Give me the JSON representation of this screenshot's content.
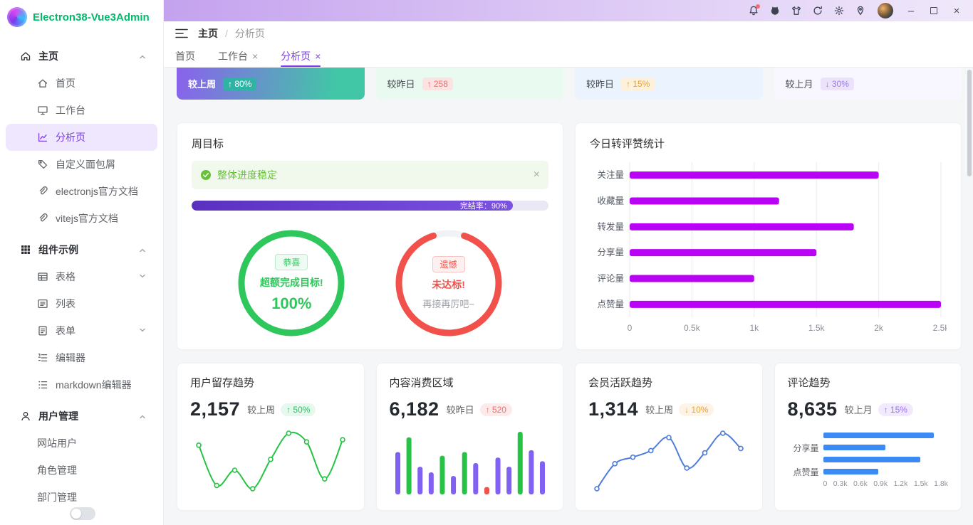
{
  "app": {
    "title": "Electron38-Vue3Admin"
  },
  "colors": {
    "brand_green": "#00b96b",
    "primary_purple": "#7c3aed",
    "bar_magenta": "#b903f5",
    "line_green": "#27c346",
    "line_blue": "#4f7cdb",
    "bar_blue": "#3d8af5",
    "bar_purple": "#8161f1",
    "danger_red": "#f56c6c",
    "warning_orange": "#e6a23c"
  },
  "titlebar": {
    "icons": [
      {
        "name": "bell",
        "has_dot": true
      },
      {
        "name": "github",
        "has_dot": false
      },
      {
        "name": "theme",
        "has_dot": false
      },
      {
        "name": "refresh",
        "has_dot": false
      },
      {
        "name": "settings",
        "has_dot": false
      },
      {
        "name": "pin",
        "has_dot": false
      }
    ],
    "window_controls": [
      "minimize",
      "maximize",
      "close"
    ]
  },
  "breadcrumb": {
    "root": "主页",
    "separator": "/",
    "current": "分析页"
  },
  "tabs": [
    {
      "label": "首页",
      "closable": false,
      "active": false
    },
    {
      "label": "工作台",
      "closable": true,
      "active": false
    },
    {
      "label": "分析页",
      "closable": true,
      "active": true
    }
  ],
  "sidebar": {
    "items": [
      {
        "label": "主页",
        "icon": "home",
        "depth": 0,
        "group": true,
        "chevron": "up"
      },
      {
        "label": "首页",
        "icon": "house",
        "depth": 1
      },
      {
        "label": "工作台",
        "icon": "monitor",
        "depth": 1
      },
      {
        "label": "分析页",
        "icon": "chart",
        "depth": 1,
        "active": true
      },
      {
        "label": "自定义面包屑",
        "icon": "tag",
        "depth": 1
      },
      {
        "label": "electronjs官方文档",
        "icon": "link",
        "depth": 1
      },
      {
        "label": "vitejs官方文档",
        "icon": "link",
        "depth": 1
      },
      {
        "label": "组件示例",
        "icon": "grid",
        "depth": 0,
        "group": true,
        "chevron": "up"
      },
      {
        "label": "表格",
        "icon": "table",
        "depth": 1,
        "chevron": "down"
      },
      {
        "label": "列表",
        "icon": "list",
        "depth": 1
      },
      {
        "label": "表单",
        "icon": "form",
        "depth": 1,
        "chevron": "down"
      },
      {
        "label": "编辑器",
        "icon": "editor",
        "depth": 1
      },
      {
        "label": "markdown编辑器",
        "icon": "markdown",
        "depth": 1
      },
      {
        "label": "用户管理",
        "icon": "user",
        "depth": 0,
        "group": true,
        "chevron": "up"
      },
      {
        "label": "网站用户",
        "icon": "",
        "depth": 1
      },
      {
        "label": "角色管理",
        "icon": "",
        "depth": 1
      },
      {
        "label": "部门管理",
        "icon": "",
        "depth": 1
      }
    ]
  },
  "stat_cards": [
    {
      "label": "较上周",
      "badge": "↑ 80%",
      "style": "gradient"
    },
    {
      "label": "较昨日",
      "badge": "↑ 258",
      "style": "green"
    },
    {
      "label": "较昨日",
      "badge": "↑ 15%",
      "style": "blue"
    },
    {
      "label": "较上月",
      "badge": "↓ 30%",
      "style": "purple"
    }
  ],
  "week_goal": {
    "title": "周目标",
    "alert_text": "整体进度稳定",
    "progress_label": "完结率：90%",
    "progress_percent": 90
  },
  "trend_cards": [
    {
      "title": "用户留存趋势",
      "value": "2,157",
      "compare": "较上周",
      "badge": "↑ 50%",
      "badge_style": "green",
      "chart": "retention"
    },
    {
      "title": "内容消费区域",
      "value": "6,182",
      "compare": "较昨日",
      "badge": "↑ 520",
      "badge_style": "red",
      "chart": "consumption"
    },
    {
      "title": "会员活跃趋势",
      "value": "1,314",
      "compare": "较上周",
      "badge": "↓ 10%",
      "badge_style": "orange",
      "chart": "member"
    },
    {
      "title": "评论趋势",
      "value": "8,635",
      "compare": "较上月",
      "badge": "↑ 15%",
      "badge_style": "purple",
      "chart": "comment"
    }
  ],
  "chart_data": [
    {
      "id": "goal_success",
      "type": "gauge",
      "percent": 100,
      "color": "#2ec75b",
      "badge": "恭喜",
      "line1": "超额完成目标!",
      "line2": "100%",
      "line2_style": "big"
    },
    {
      "id": "goal_fail",
      "type": "gauge",
      "percent": 90,
      "color": "#f2504b",
      "badge": "遗憾",
      "line1": "未达标!",
      "line2": "再接再厉吧~",
      "line2_style": "muted"
    },
    {
      "id": "interaction",
      "type": "bar",
      "orientation": "horizontal",
      "title": "今日转评赞统计",
      "categories": [
        "关注量",
        "收藏量",
        "转发量",
        "分享量",
        "评论量",
        "点赞量"
      ],
      "values": [
        2000,
        1200,
        1800,
        1500,
        1000,
        2500
      ],
      "xlim": [
        0,
        2500
      ],
      "xticks": [
        "0",
        "0.5k",
        "1k",
        "1.5k",
        "2k",
        "2.5k"
      ],
      "color": "#b903f5",
      "grid": true
    },
    {
      "id": "retention",
      "type": "line",
      "y": [
        55,
        18,
        32,
        15,
        42,
        66,
        58,
        24,
        60
      ],
      "color": "#27c346"
    },
    {
      "id": "consumption",
      "type": "bar",
      "orientation": "vertical",
      "values": [
        46,
        62,
        30,
        24,
        42,
        20,
        46,
        34,
        8,
        40,
        30,
        68,
        48,
        36
      ],
      "colors": [
        "#8161f1",
        "#27c346",
        "#8161f1",
        "#8161f1",
        "#27c346",
        "#8161f1",
        "#27c346",
        "#8161f1",
        "#f2504b",
        "#8161f1",
        "#8161f1",
        "#27c346",
        "#8161f1",
        "#8161f1"
      ]
    },
    {
      "id": "member",
      "type": "line",
      "y": [
        15,
        38,
        44,
        50,
        62,
        34,
        48,
        66,
        52
      ],
      "color": "#4f7cdb"
    },
    {
      "id": "comment",
      "type": "bar",
      "orientation": "horizontal",
      "categories": [
        "",
        "分享量",
        "",
        "点赞量"
      ],
      "values": [
        1600,
        900,
        1400,
        800
      ],
      "xlim": [
        0,
        1800
      ],
      "xticks": [
        "0",
        "0.3k",
        "0.6k",
        "0.9k",
        "1.2k",
        "1.5k",
        "1.8k"
      ],
      "color": "#3d8af5",
      "grid": false
    }
  ]
}
